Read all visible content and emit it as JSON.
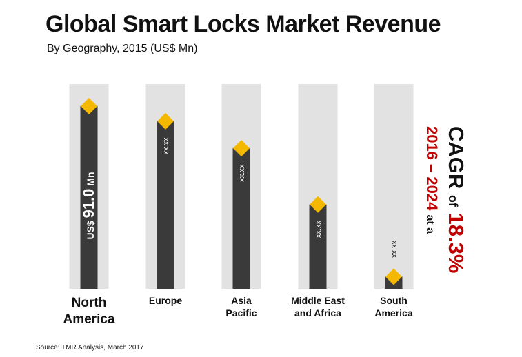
{
  "title": "Global Smart Locks Market Revenue",
  "subtitle": "By Geography, 2015 (US$ Mn)",
  "chart_data": {
    "type": "bar",
    "categories": [
      "North\nAmerica",
      "Europe",
      "Asia\nPacific",
      "Middle East\nand Africa",
      "South\nAmerica"
    ],
    "values": [
      91.0,
      83.5,
      70.0,
      42.0,
      6.0
    ],
    "data_labels": [
      "US$ 91.0 Mn",
      "xx.xx",
      "xx.xx",
      "xx.xx",
      "xx.xx"
    ],
    "ylim": [
      0,
      102
    ],
    "colors": {
      "bar": "#3a3a3a",
      "track": "#e2e2e2",
      "marker": "#f5b800",
      "label": "#ffffff"
    }
  },
  "cagr": {
    "period": "2016 – 2024",
    "at_a": "at a",
    "cagr_label": "CAGR",
    "of": "of",
    "rate": "18.3%"
  },
  "source": "Source: TMR Analysis, March 2017"
}
